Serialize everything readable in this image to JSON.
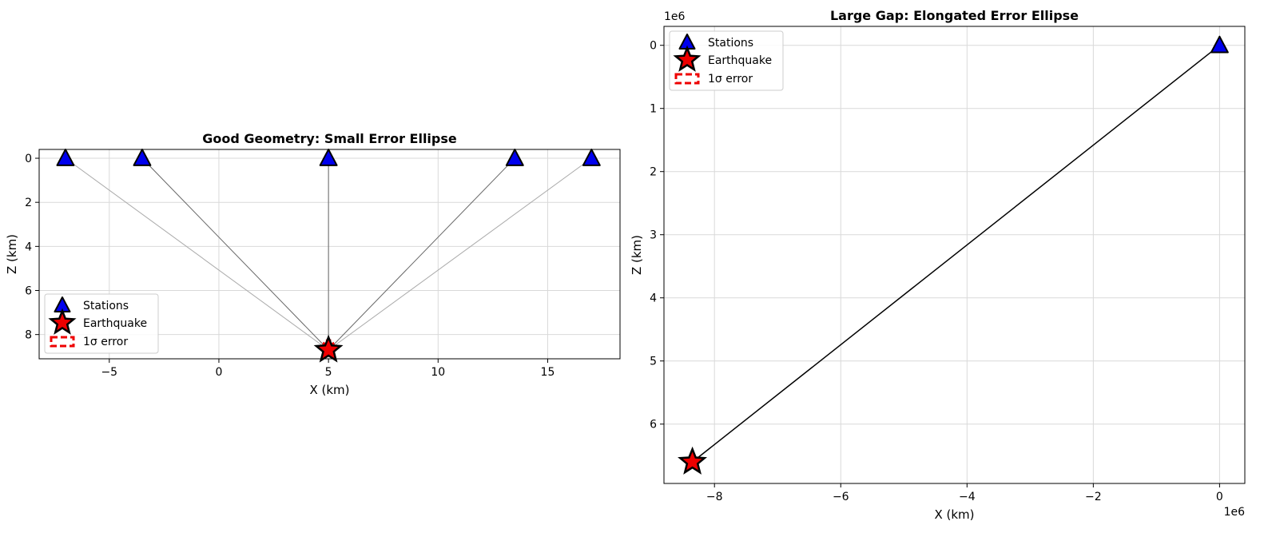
{
  "chart_data": [
    {
      "type": "scatter",
      "title": "Good Geometry: Small Error Ellipse",
      "xlabel": "X (km)",
      "ylabel": "Z (km)",
      "xlim": [
        -8.2,
        18.3
      ],
      "ylim": [
        9.1,
        -0.4
      ],
      "y_inverted": true,
      "xticks": [
        -5,
        0,
        5,
        10,
        15
      ],
      "yticks": [
        0,
        2,
        4,
        6,
        8
      ],
      "x_offset_label": "",
      "y_offset_label": "",
      "grid": true,
      "legend_position": "lower-left",
      "legend": [
        "Stations",
        "Earthquake",
        "1σ error"
      ],
      "stations": [
        {
          "x": -7.0,
          "z": 0.0
        },
        {
          "x": -3.5,
          "z": 0.0
        },
        {
          "x": 5.0,
          "z": 0.0
        },
        {
          "x": 13.5,
          "z": 0.0
        },
        {
          "x": 17.0,
          "z": 0.0
        }
      ],
      "ray_styles": [
        "light",
        "dark",
        "dark",
        "dark",
        "light"
      ],
      "earthquake": {
        "x": 5.0,
        "z": 8.7
      },
      "error_ellipse": {
        "x": 5.0,
        "z": 8.6,
        "sx": 0.25,
        "sz": 0.35
      },
      "colors": {
        "station": "#0000ee",
        "earthquake": "#ee0000",
        "ray_dark": "#666666",
        "ray_light": "#aaaaaa",
        "error": "#ee0000"
      }
    },
    {
      "type": "scatter",
      "title": "Large Gap: Elongated Error Ellipse",
      "xlabel": "X (km)",
      "ylabel": "Z (km)",
      "xlim": [
        -8800000,
        400000
      ],
      "ylim": [
        6940000,
        -300000
      ],
      "y_inverted": true,
      "xticks": [
        -8,
        -6,
        -4,
        -2,
        0
      ],
      "yticks": [
        0,
        1,
        2,
        3,
        4,
        5,
        6
      ],
      "tick_scale": 1000000,
      "x_offset_label": "1e6",
      "y_offset_label": "1e6",
      "grid": true,
      "legend_position": "upper-left",
      "legend": [
        "Stations",
        "Earthquake",
        "1σ error"
      ],
      "stations": [
        {
          "x": 0,
          "z": 0
        }
      ],
      "ray_styles": [
        "black"
      ],
      "earthquake": {
        "x": -8350000,
        "z": 6600000
      },
      "colors": {
        "station": "#0000ee",
        "earthquake": "#ee0000",
        "ray_black": "#000000",
        "error": "#ee0000"
      }
    }
  ]
}
